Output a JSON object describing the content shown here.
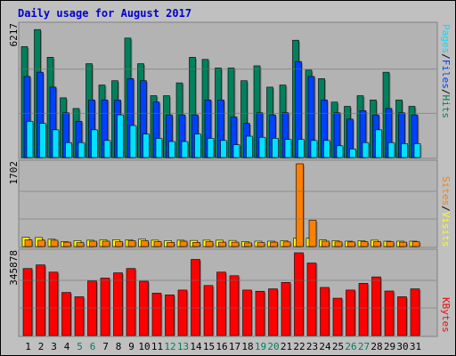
{
  "title": "Daily usage for August 2017",
  "colors": {
    "background": "#c0c0c0",
    "plot_bg": "#b3b3b3",
    "title": "#0000cc",
    "hits": "#00805c",
    "files": "#0040ff",
    "pages": "#00e0ff",
    "visits": "#ffff00",
    "sites": "#ff8000",
    "kbytes": "#ff0000",
    "weekend_label": "#00805c",
    "weekday_label": "#000000"
  },
  "chart_data": [
    {
      "type": "bar",
      "panel": "top",
      "max_label": "6217",
      "side_label": [
        "Pages",
        "/",
        "Files",
        "/",
        "Hits"
      ],
      "ylim": [
        0,
        6217
      ],
      "categories": [
        "1",
        "2",
        "3",
        "4",
        "5",
        "6",
        "7",
        "8",
        "9",
        "10",
        "11",
        "12",
        "13",
        "14",
        "15",
        "16",
        "17",
        "18",
        "19",
        "20",
        "21",
        "22",
        "23",
        "24",
        "25",
        "26",
        "27",
        "28",
        "29",
        "30",
        "31"
      ],
      "weekend": [
        "5",
        "6",
        "12",
        "13",
        "19",
        "20",
        "26",
        "27"
      ],
      "series": [
        {
          "name": "Hits",
          "values": [
            5200,
            6000,
            4700,
            2800,
            2300,
            4400,
            3400,
            3600,
            5600,
            4400,
            2900,
            2900,
            3500,
            4700,
            4600,
            4200,
            4200,
            3600,
            4300,
            3300,
            3400,
            5500,
            4100,
            3700,
            2600,
            2400,
            2900,
            2700,
            4000,
            2700,
            2400
          ]
        },
        {
          "name": "Files",
          "values": [
            3800,
            4000,
            3300,
            2100,
            1700,
            2700,
            2700,
            2700,
            3700,
            3600,
            2600,
            2000,
            2000,
            2000,
            2700,
            2700,
            1900,
            1600,
            2100,
            2000,
            2100,
            4500,
            3800,
            2700,
            2100,
            1800,
            2200,
            2000,
            2300,
            2100,
            2000
          ]
        },
        {
          "name": "Pages",
          "values": [
            1700,
            1600,
            1300,
            700,
            700,
            1300,
            800,
            2000,
            1500,
            1100,
            900,
            750,
            750,
            1100,
            900,
            800,
            600,
            1000,
            950,
            900,
            850,
            850,
            800,
            800,
            550,
            400,
            700,
            1300,
            700,
            650,
            650
          ]
        }
      ]
    },
    {
      "type": "bar",
      "panel": "middle",
      "max_label": "1702",
      "side_label": [
        "Sites",
        "/",
        "Visits"
      ],
      "ylim": [
        0,
        1702
      ],
      "categories": [
        "1",
        "2",
        "3",
        "4",
        "5",
        "6",
        "7",
        "8",
        "9",
        "10",
        "11",
        "12",
        "13",
        "14",
        "15",
        "16",
        "17",
        "18",
        "19",
        "20",
        "21",
        "22",
        "23",
        "24",
        "25",
        "26",
        "27",
        "28",
        "29",
        "30",
        "31"
      ],
      "series": [
        {
          "name": "Visits",
          "values": [
            190,
            185,
            150,
            100,
            120,
            130,
            140,
            140,
            140,
            150,
            130,
            120,
            130,
            125,
            130,
            130,
            125,
            100,
            110,
            110,
            120,
            170,
            170,
            135,
            120,
            110,
            120,
            130,
            110,
            110,
            110
          ]
        },
        {
          "name": "Sites",
          "values": [
            140,
            130,
            130,
            90,
            80,
            110,
            110,
            100,
            120,
            120,
            100,
            85,
            110,
            85,
            100,
            90,
            90,
            75,
            80,
            90,
            95,
            1702,
            540,
            110,
            95,
            95,
            100,
            100,
            100,
            90,
            100
          ]
        }
      ]
    },
    {
      "type": "bar",
      "panel": "bottom",
      "max_label": "345878",
      "side_label": [
        "KBytes"
      ],
      "ylim": [
        0,
        345878
      ],
      "categories": [
        "1",
        "2",
        "3",
        "4",
        "5",
        "6",
        "7",
        "8",
        "9",
        "10",
        "11",
        "12",
        "13",
        "14",
        "15",
        "16",
        "17",
        "18",
        "19",
        "20",
        "21",
        "22",
        "23",
        "24",
        "25",
        "26",
        "27",
        "28",
        "29",
        "30",
        "31"
      ],
      "series": [
        {
          "name": "KBytes",
          "values": [
            280000,
            295000,
            265000,
            180000,
            162000,
            228000,
            240000,
            262000,
            280000,
            227000,
            177000,
            170000,
            190000,
            318000,
            209000,
            265000,
            250000,
            190000,
            185000,
            195000,
            222000,
            345878,
            303000,
            201000,
            156000,
            190000,
            218000,
            245000,
            186000,
            162000,
            195000
          ]
        }
      ]
    }
  ]
}
